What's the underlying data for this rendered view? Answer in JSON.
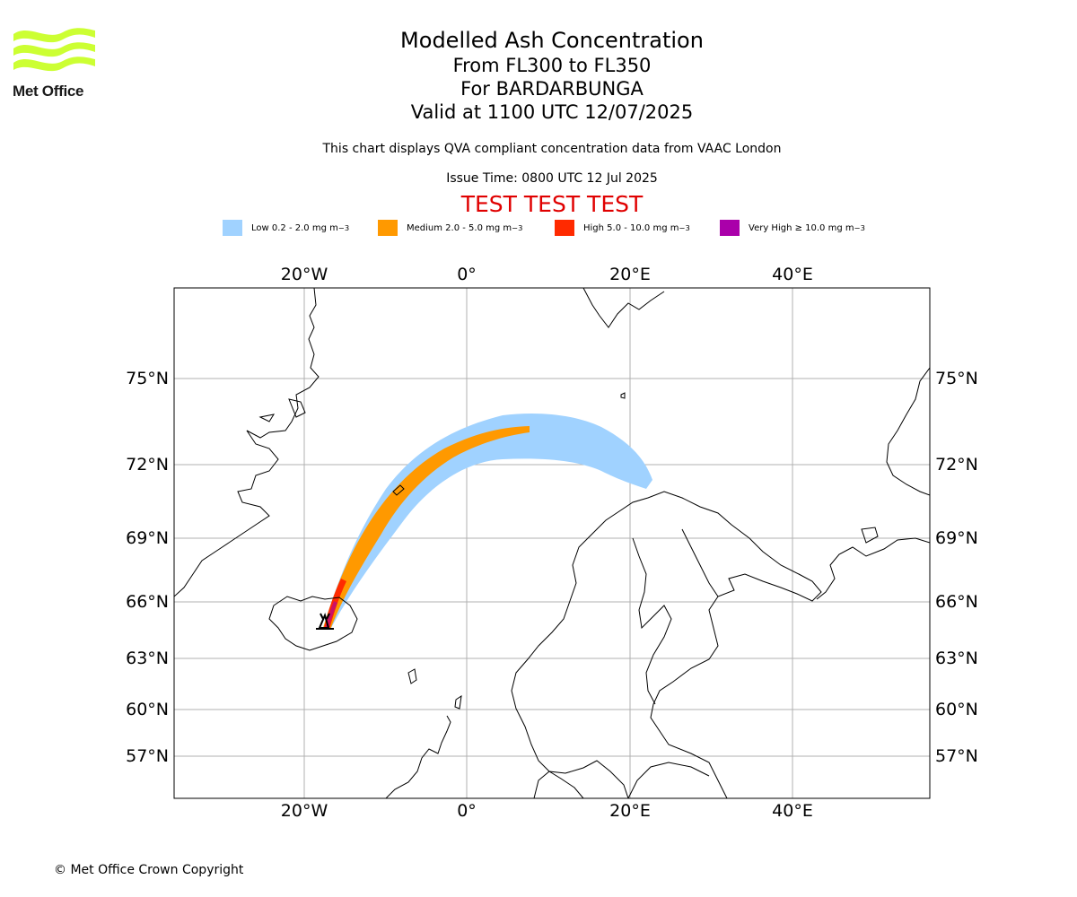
{
  "logo": {
    "text": "Met Office",
    "icon": "met-office-wave-logo-icon",
    "color": "#ccff33"
  },
  "title": {
    "main": "Modelled Ash Concentration",
    "levels": "From FL300 to FL350",
    "volcano": "For BARDARBUNGA",
    "valid": "Valid at 1100 UTC 12/07/2025"
  },
  "compliance_note": "This chart displays QVA compliant concentration data from VAAC London",
  "issue_time": "Issue Time: 0800 UTC 12 Jul 2025",
  "test_banner": "TEST TEST TEST",
  "legend": [
    {
      "label": "Low 0.2 - 2.0 mg m",
      "sup": "−3",
      "color": "#a0d2ff"
    },
    {
      "label": "Medium 2.0 - 5.0 mg m",
      "sup": "−3",
      "color": "#ff9900"
    },
    {
      "label": "High 5.0 - 10.0 mg m",
      "sup": "−3",
      "color": "#ff2a00"
    },
    {
      "label": "Very High ≥ 10.0 mg m",
      "sup": "−3",
      "color": "#aa00aa"
    }
  ],
  "map": {
    "lon_labels": [
      "20°W",
      "0°",
      "20°E",
      "40°E"
    ],
    "lat_labels": [
      "75°N",
      "72°N",
      "69°N",
      "66°N",
      "63°N",
      "60°N",
      "57°N"
    ],
    "volcano_marker": "volcano-icon"
  },
  "copyright": "© Met Office Crown Copyright"
}
